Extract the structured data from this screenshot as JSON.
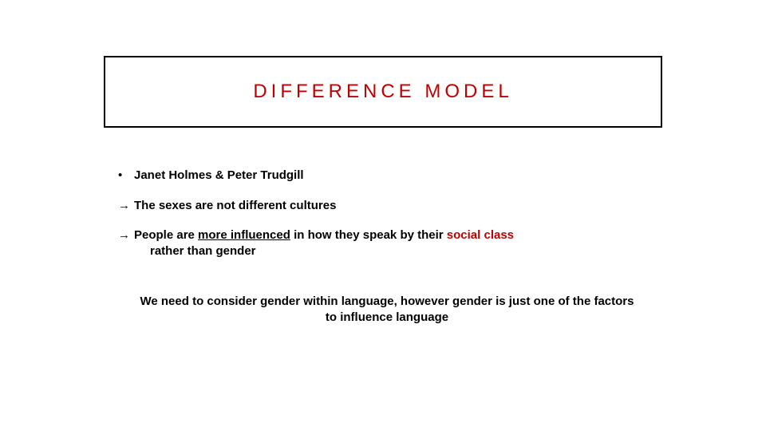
{
  "title": "DIFFERENCE MODEL",
  "bullets": {
    "b1": "Janet Holmes & Peter Trudgill",
    "b2": "The sexes are not different cultures",
    "b3_pre": "People are ",
    "b3_underline": "more influenced",
    "b3_mid": " in how they speak by their ",
    "b3_red": "social class",
    "b3_post": " rather than gender"
  },
  "summary": "We need to consider gender within language, however gender is just one of the factors to influence language",
  "colors": {
    "accent": "#c00000",
    "text": "#000000",
    "border": "#000000",
    "background": "#ffffff"
  },
  "arrow_glyph": "→",
  "dot_glyph": "•"
}
